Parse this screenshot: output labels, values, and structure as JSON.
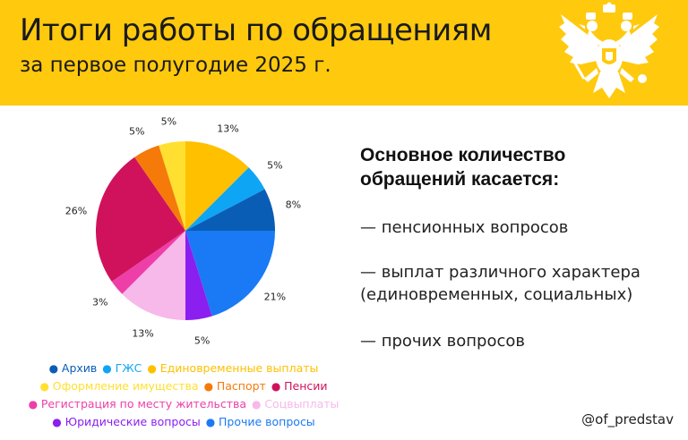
{
  "header": {
    "title": "Итоги работы по обращениям",
    "subtitle": "за первое полугодие 2025 г.",
    "background": "#ffc90e",
    "emblem_icon": "double-headed-eagle-icon"
  },
  "chart_data": {
    "type": "pie",
    "title": "",
    "start": "12 o'clock",
    "direction": "clockwise",
    "slices": [
      {
        "name": "Единовременные выплаты",
        "value": 13,
        "label": "13%",
        "color": "#ffc000"
      },
      {
        "name": "ГЖС",
        "value": 5,
        "label": "5%",
        "color": "#0ea5f5"
      },
      {
        "name": "Архив",
        "value": 8,
        "label": "8%",
        "color": "#0a5db5"
      },
      {
        "name": "Прочие вопросы",
        "value": 21,
        "label": "21%",
        "color": "#1a7af5"
      },
      {
        "name": "Юридические вопросы",
        "value": 5,
        "label": "5%",
        "color": "#8a1ff0"
      },
      {
        "name": "Соцвыплаты",
        "value": 13,
        "label": "13%",
        "color": "#f7b8ea"
      },
      {
        "name": "Регистрация по месту жительства",
        "value": 3,
        "label": "3%",
        "color": "#ee3fa8"
      },
      {
        "name": "Пенсии",
        "value": 26,
        "label": "26%",
        "color": "#d0125c"
      },
      {
        "name": "Паспорт",
        "value": 5,
        "label": "5%",
        "color": "#f57a0a"
      },
      {
        "name": "Оформление имущества",
        "value": 5,
        "label": "5%",
        "color": "#ffe030"
      }
    ],
    "legend": {
      "placement": "bottom-left",
      "rows": [
        [
          {
            "name": "Архив",
            "color": "#0a5db5"
          },
          {
            "name": "ГЖС",
            "color": "#0ea5f5"
          },
          {
            "name": "Единовременные выплаты",
            "color": "#ffc000"
          }
        ],
        [
          {
            "name": "Оформление имущества",
            "color": "#ffe030"
          },
          {
            "name": "Паспорт",
            "color": "#f57a0a"
          },
          {
            "name": "Пенсии",
            "color": "#d0125c"
          }
        ],
        [
          {
            "name": "Регистрация по месту жительства",
            "color": "#ee3fa8"
          },
          {
            "name": "Соцвыплаты",
            "color": "#f7b8ea"
          }
        ],
        [
          {
            "name": "Юридические вопросы",
            "color": "#8a1ff0"
          },
          {
            "name": "Прочие вопросы",
            "color": "#1a7af5"
          }
        ]
      ]
    }
  },
  "summary": {
    "heading_line1": "Основное количество",
    "heading_line2": "обращений касается:",
    "point1": "— пенсионных вопросов",
    "point2_line1": "— выплат различного характера",
    "point2_line2": "(единовременных, социальных)",
    "point3": "— прочих вопросов"
  },
  "footer": {
    "handle": "@of_predstav"
  }
}
